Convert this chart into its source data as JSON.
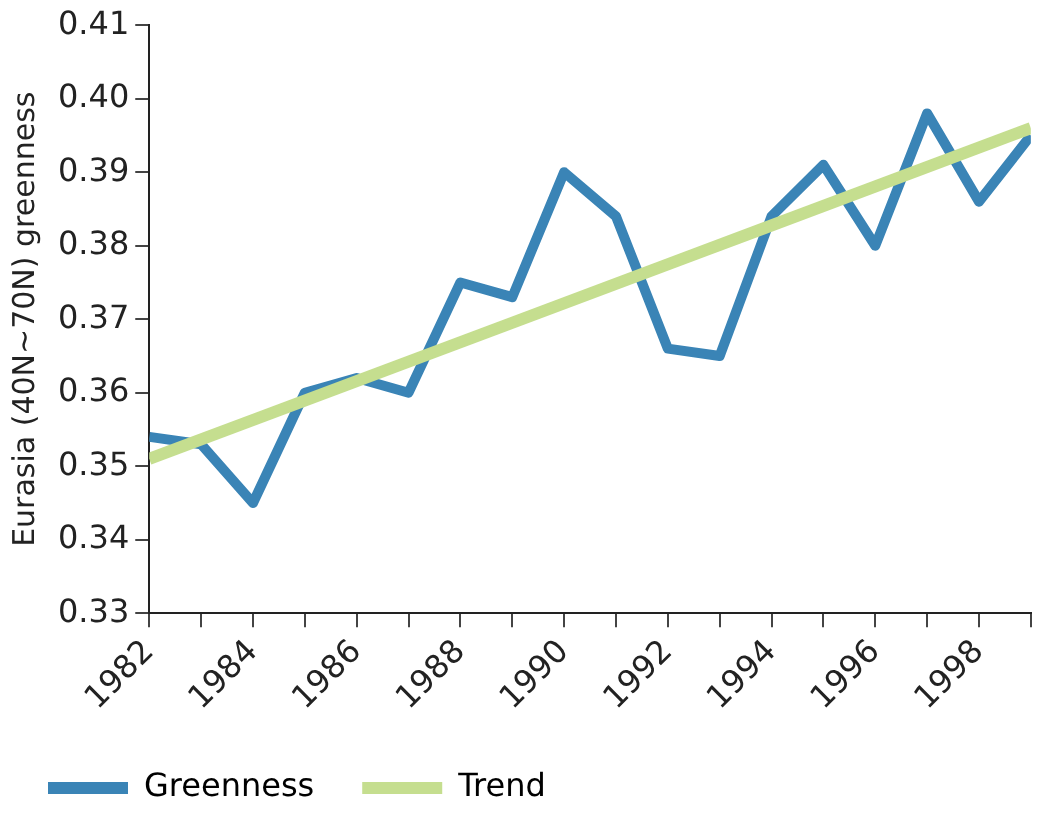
{
  "chart_data": {
    "type": "line",
    "ylabel": "Eurasia (40N~70N) greenness",
    "x": [
      1982,
      1983,
      1984,
      1985,
      1986,
      1987,
      1988,
      1989,
      1990,
      1991,
      1992,
      1993,
      1994,
      1995,
      1996,
      1997,
      1998,
      1999
    ],
    "series": [
      {
        "name": "Greenness",
        "color": "#3a84b6",
        "values": [
          0.354,
          0.353,
          0.345,
          0.36,
          0.362,
          0.36,
          0.375,
          0.373,
          0.39,
          0.384,
          0.366,
          0.365,
          0.384,
          0.391,
          0.38,
          0.398,
          0.386,
          0.395
        ]
      },
      {
        "name": "Trend",
        "color": "#c5de8f",
        "x": [
          1982,
          1999
        ],
        "values": [
          0.351,
          0.396
        ]
      }
    ],
    "xlim": [
      1982,
      1999
    ],
    "xticks": [
      1982,
      {
        "value": 1983,
        "label": null
      },
      1984,
      {
        "value": 1985,
        "label": null
      },
      1986,
      {
        "value": 1987,
        "label": null
      },
      1988,
      {
        "value": 1989,
        "label": null
      },
      1990,
      {
        "value": 1991,
        "label": null
      },
      1992,
      {
        "value": 1993,
        "label": null
      },
      1994,
      {
        "value": 1995,
        "label": null
      },
      1996,
      {
        "value": 1997,
        "label": null
      },
      1998,
      {
        "value": 1999,
        "label": null
      }
    ],
    "ylim": [
      0.33,
      0.41
    ],
    "yticks": [
      {
        "value": 0.33,
        "label": "0.33"
      },
      {
        "value": 0.34,
        "label": "0.34"
      },
      {
        "value": 0.35,
        "label": "0.35"
      },
      {
        "value": 0.36,
        "label": "0.36"
      },
      {
        "value": 0.37,
        "label": "0.37"
      },
      {
        "value": 0.38,
        "label": "0.38"
      },
      {
        "value": 0.39,
        "label": "0.39"
      },
      {
        "value": 0.4,
        "label": "0.40"
      },
      {
        "value": 0.41,
        "label": "0.41"
      }
    ],
    "grid": false,
    "legend": "bottom",
    "marker": "none",
    "line_style": "solid"
  }
}
